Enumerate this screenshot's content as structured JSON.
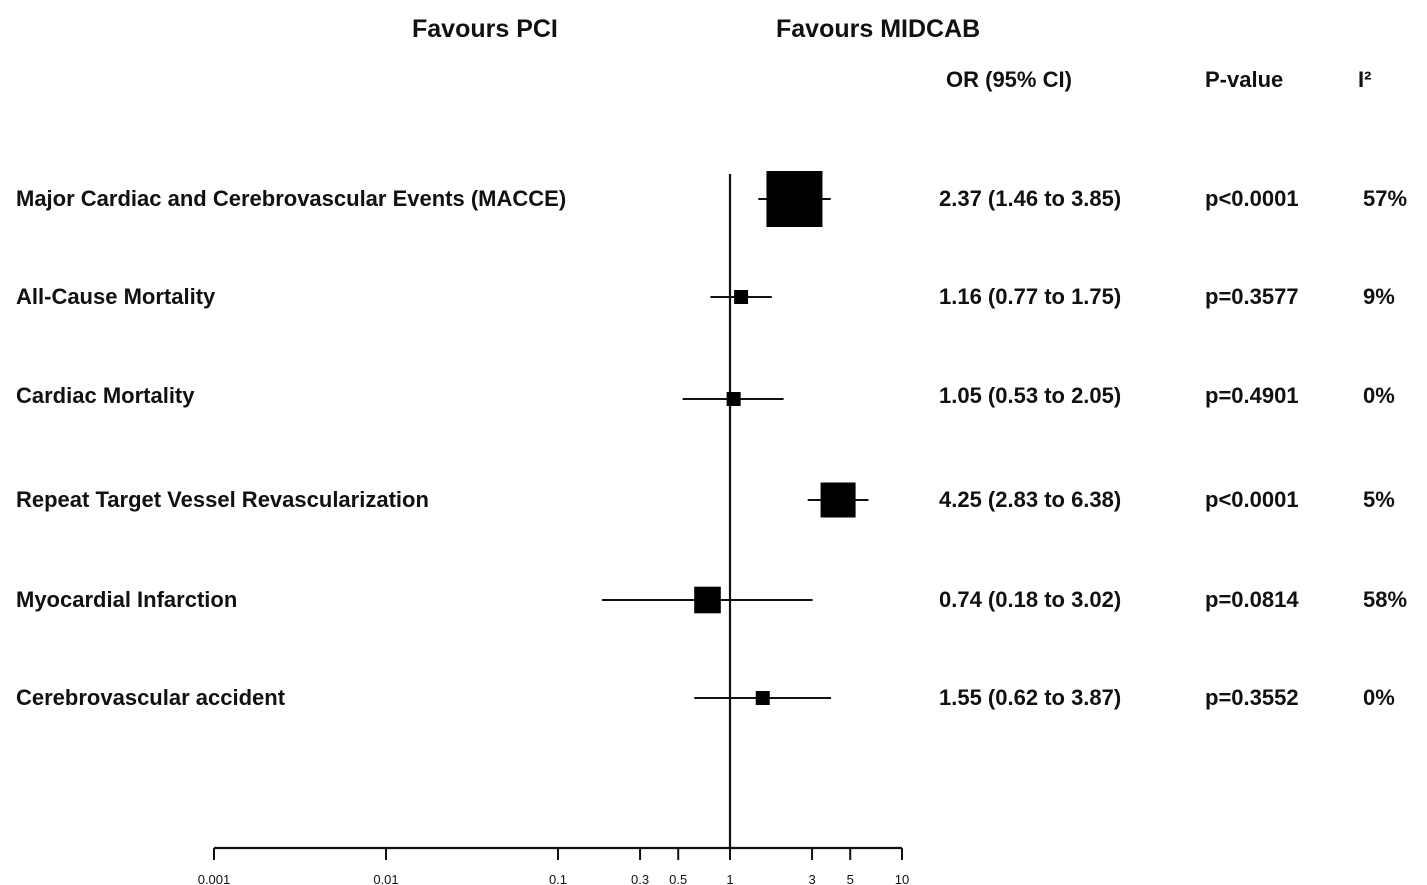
{
  "chart_data": {
    "type": "forest",
    "scale": "log",
    "xlim": [
      0.001,
      10
    ],
    "x_ticks": [
      0.001,
      0.01,
      0.1,
      0.3,
      0.5,
      1,
      3,
      5,
      10
    ],
    "x_tick_labels": [
      "0.001",
      "0.01",
      "0.1",
      "0.3",
      "0.5",
      "1",
      "3",
      "5",
      "10"
    ],
    "reference_line": 1,
    "direction_labels": {
      "left": "Favours PCI",
      "right": "Favours MIDCAB"
    },
    "column_headers": {
      "or": "OR (95% CI)",
      "p": "P-value",
      "i2": "I²"
    },
    "outcomes": [
      {
        "label": "Major Cardiac and Cerebrovascular Events (MACCE)",
        "or": 2.37,
        "ci_low": 1.46,
        "ci_high": 3.85,
        "or_text": "2.37 (1.46 to 3.85)",
        "p_text": "p<0.0001",
        "i2_text": "57%",
        "marker_size": 3
      },
      {
        "label": "All-Cause Mortality",
        "or": 1.16,
        "ci_low": 0.77,
        "ci_high": 1.75,
        "or_text": "1.16 (0.77 to 1.75)",
        "p_text": "p=0.3577",
        "i2_text": "9%",
        "marker_size": 1
      },
      {
        "label": "Cardiac Mortality",
        "or": 1.05,
        "ci_low": 0.53,
        "ci_high": 2.05,
        "or_text": "1.05 (0.53 to 2.05)",
        "p_text": "p=0.4901",
        "i2_text": "0%",
        "marker_size": 1
      },
      {
        "label": "Repeat Target Vessel Revascularization",
        "or": 4.25,
        "ci_low": 2.83,
        "ci_high": 6.38,
        "or_text": "4.25 (2.83 to 6.38)",
        "p_text": "p<0.0001",
        "i2_text": "5%",
        "marker_size": 2
      },
      {
        "label": "Myocardial Infarction",
        "or": 0.74,
        "ci_low": 0.18,
        "ci_high": 3.02,
        "or_text": "0.74 (0.18 to 3.02)",
        "p_text": "p=0.0814",
        "i2_text": "58%",
        "marker_size": 1.6
      },
      {
        "label": "Cerebrovascular accident",
        "or": 1.55,
        "ci_low": 0.62,
        "ci_high": 3.87,
        "or_text": "1.55 (0.62 to 3.87)",
        "p_text": "p=0.3552",
        "i2_text": "0%",
        "marker_size": 1
      }
    ]
  }
}
